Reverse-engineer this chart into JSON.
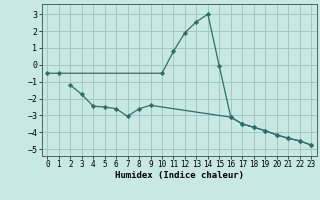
{
  "xlabel": "Humidex (Indice chaleur)",
  "background_color": "#c8e8e4",
  "grid_color": "#a0c8c4",
  "line_color": "#2e7068",
  "xlim": [
    -0.5,
    23.5
  ],
  "ylim": [
    -5.4,
    3.6
  ],
  "yticks": [
    -5,
    -4,
    -3,
    -2,
    -1,
    0,
    1,
    2,
    3
  ],
  "xticks": [
    0,
    1,
    2,
    3,
    4,
    5,
    6,
    7,
    8,
    9,
    10,
    11,
    12,
    13,
    14,
    15,
    16,
    17,
    18,
    19,
    20,
    21,
    22,
    23
  ],
  "line1_x": [
    0,
    1,
    10,
    11,
    12,
    13,
    14,
    15,
    16,
    17,
    18,
    19,
    20,
    21,
    22,
    23
  ],
  "line1_y": [
    -0.5,
    -0.5,
    -0.5,
    0.8,
    1.9,
    2.55,
    3.0,
    -0.1,
    -3.1,
    -3.5,
    -3.7,
    -3.9,
    -4.15,
    -4.35,
    -4.5,
    -4.75
  ],
  "line2_x": [
    2,
    3,
    4,
    5,
    6,
    7,
    8,
    9,
    16,
    17,
    18,
    19,
    20,
    21,
    22,
    23
  ],
  "line2_y": [
    -1.2,
    -1.75,
    -2.45,
    -2.5,
    -2.6,
    -3.05,
    -2.6,
    -2.4,
    -3.1,
    -3.5,
    -3.7,
    -3.9,
    -4.15,
    -4.35,
    -4.5,
    -4.75
  ]
}
